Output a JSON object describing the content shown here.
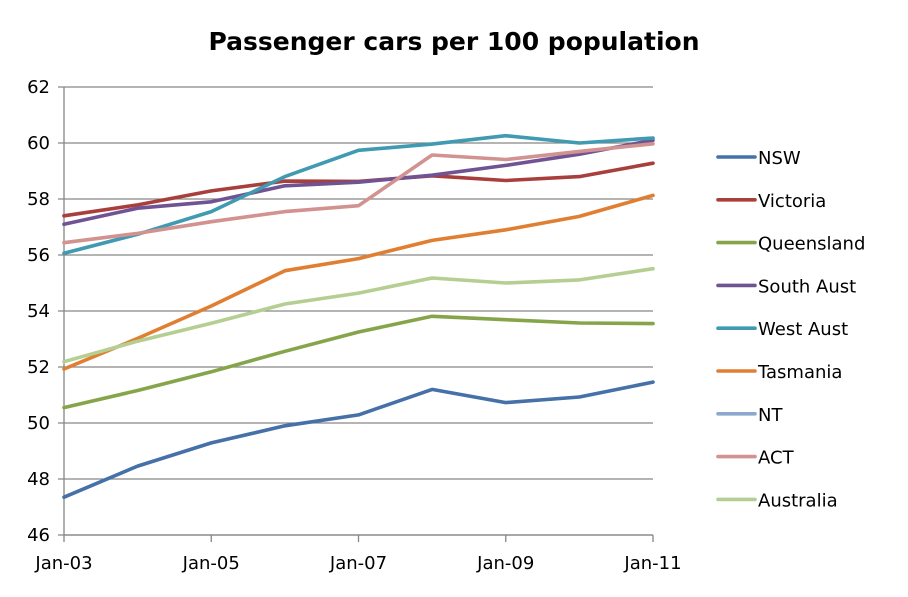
{
  "chart_data": {
    "type": "line",
    "title": "Passenger cars per 100 population",
    "xlabel": "",
    "ylabel": "",
    "x": [
      "Jan-03",
      "Jan-04",
      "Jan-05",
      "Jan-06",
      "Jan-07",
      "Jan-08",
      "Jan-09",
      "Jan-10",
      "Jan-11"
    ],
    "x_tick_labels": [
      "Jan-03",
      "Jan-05",
      "Jan-07",
      "Jan-09",
      "Jan-11"
    ],
    "y_tick_labels": [
      "46",
      "48",
      "50",
      "52",
      "54",
      "56",
      "58",
      "60",
      "62"
    ],
    "ylim": [
      46,
      62
    ],
    "y_major_step": 2,
    "grid": true,
    "legend_position": "right",
    "series": [
      {
        "name": "NSW",
        "color": "#4570a8",
        "values": [
          47.35,
          48.46,
          49.29,
          49.9,
          50.29,
          51.2,
          50.73,
          50.93,
          51.46
        ]
      },
      {
        "name": "Victoria",
        "color": "#a83f3c",
        "values": [
          57.4,
          57.79,
          58.29,
          58.64,
          58.63,
          58.83,
          58.66,
          58.8,
          59.28
        ]
      },
      {
        "name": "Queensland",
        "color": "#86a54a",
        "values": [
          50.55,
          51.16,
          51.83,
          52.56,
          53.25,
          53.81,
          53.69,
          53.57,
          53.55
        ]
      },
      {
        "name": "South Aust",
        "color": "#6f5393",
        "values": [
          57.1,
          57.67,
          57.9,
          58.47,
          58.6,
          58.85,
          59.2,
          59.6,
          60.1
        ]
      },
      {
        "name": "West Aust",
        "color": "#3f9ab2",
        "values": [
          56.06,
          56.74,
          57.55,
          58.8,
          59.74,
          59.96,
          60.26,
          60.0,
          60.18
        ]
      },
      {
        "name": "Tasmania",
        "color": "#e07e32",
        "values": [
          51.93,
          53.02,
          54.18,
          55.44,
          55.87,
          56.52,
          56.9,
          57.38,
          58.13
        ]
      },
      {
        "name": "NT",
        "color": "#8ca8cf",
        "values": []
      },
      {
        "name": "ACT",
        "color": "#d19290",
        "values": [
          56.44,
          56.77,
          57.19,
          57.55,
          57.76,
          59.57,
          59.41,
          59.7,
          59.97
        ]
      },
      {
        "name": "Australia",
        "color": "#b5ce92",
        "values": [
          52.19,
          52.92,
          53.56,
          54.25,
          54.64,
          55.18,
          55.0,
          55.11,
          55.51
        ]
      }
    ]
  }
}
